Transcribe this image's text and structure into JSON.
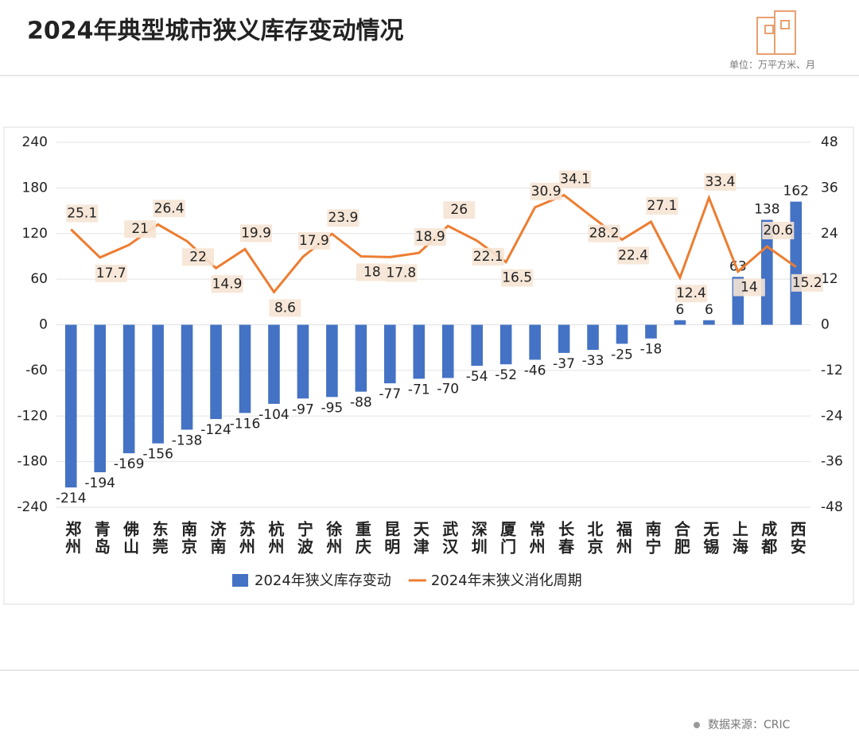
{
  "title": "2024年典型城市狭义库存变动情况",
  "unit_note": "单位：万平方米、月",
  "source": "数据来源：CRIC",
  "chart_data": {
    "type": "bar_line",
    "categories": [
      "郑州",
      "青岛",
      "佛山",
      "东莞",
      "南京",
      "济南",
      "苏州",
      "杭州",
      "宁波",
      "徐州",
      "重庆",
      "昆明",
      "天津",
      "武汉",
      "深圳",
      "厦门",
      "常州",
      "长春",
      "北京",
      "福州",
      "南宁",
      "合肥",
      "无锡",
      "上海",
      "成都",
      "西安"
    ],
    "series": [
      {
        "name": "2024年狭义库存变动",
        "color": "#4472c4",
        "type": "bar",
        "values": [
          -214,
          -194,
          -169,
          -156,
          -138,
          -124,
          -116,
          -104,
          -97,
          -95,
          -88,
          -77,
          -71,
          -70,
          -54,
          -52,
          -46,
          -37,
          -33,
          -25,
          -18,
          6,
          6,
          63,
          138,
          162
        ]
      },
      {
        "name": "2024年末狭义消化周期",
        "color": "#ed7d31",
        "type": "line",
        "axis": "y2",
        "values": [
          25.1,
          17.7,
          21,
          26.4,
          22,
          14.9,
          19.9,
          8.6,
          17.9,
          23.9,
          18,
          17.8,
          18.9,
          26,
          22.1,
          16.5,
          30.9,
          34.1,
          28.2,
          22.4,
          27.1,
          12.4,
          33.4,
          14,
          20.6,
          15.2
        ]
      }
    ],
    "ylim": [
      -240,
      240
    ],
    "yticks": [
      -240,
      -180,
      -120,
      -60,
      0,
      60,
      120,
      180,
      240
    ],
    "y2lim": [
      -48,
      48
    ],
    "y2ticks": [
      -48,
      -36,
      -24,
      -12,
      0,
      12,
      24,
      36,
      48
    ],
    "grid": true,
    "legend": "bottom"
  }
}
